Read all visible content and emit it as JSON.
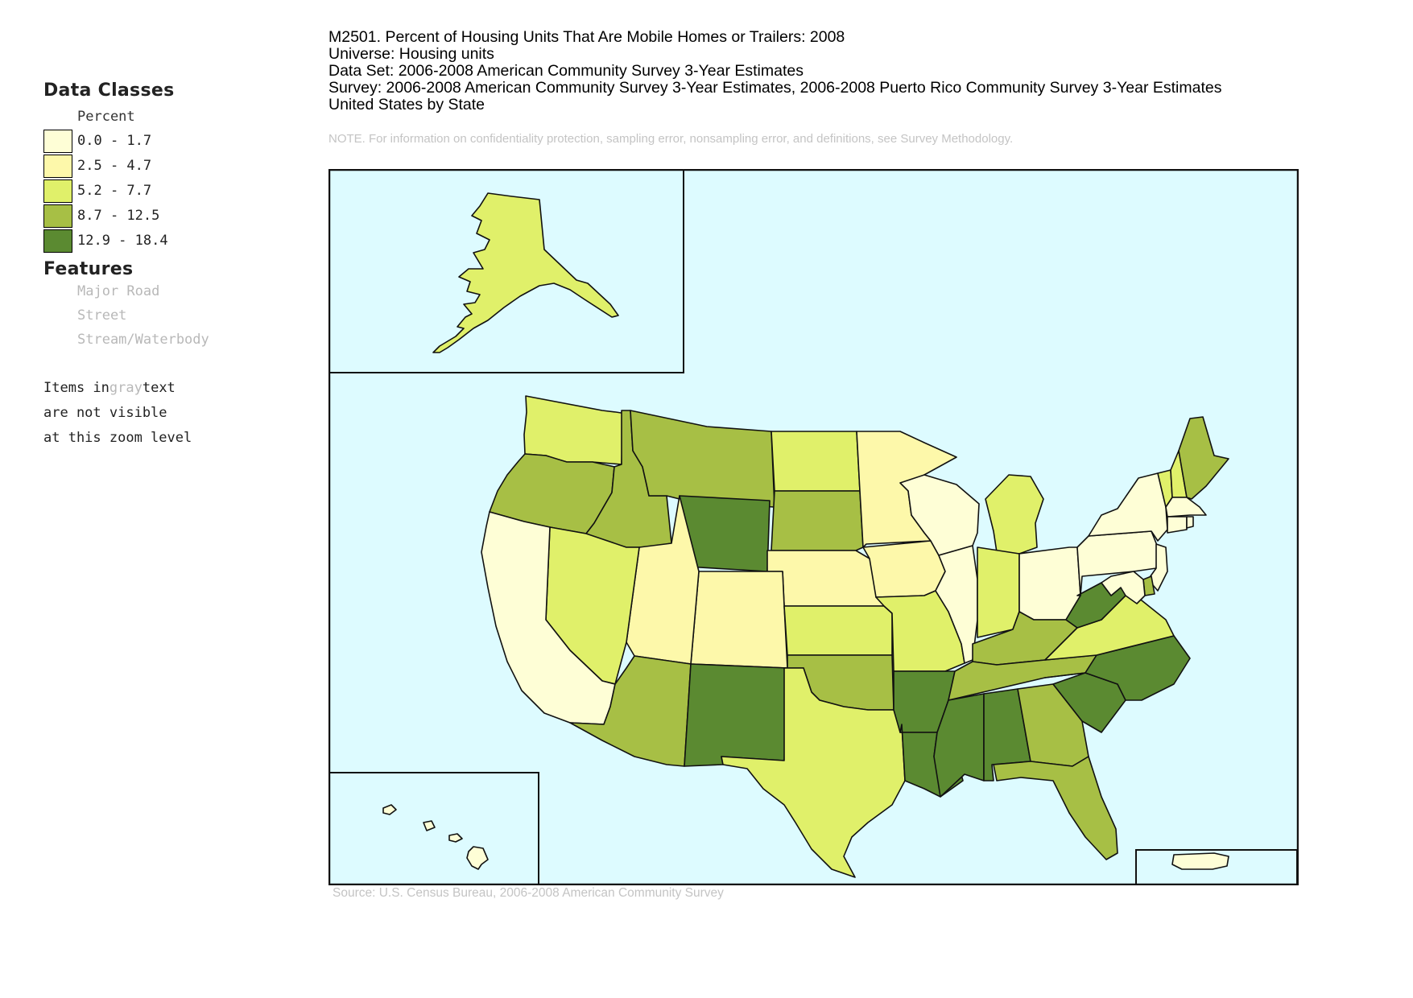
{
  "header": {
    "title": "M2501. Percent of Housing Units That Are Mobile Homes or Trailers: 2008",
    "universe": "Universe: Housing units",
    "dataset": "Data Set: 2006-2008 American Community Survey 3-Year Estimates",
    "survey": "Survey: 2006-2008 American Community Survey 3-Year Estimates, 2006-2008 Puerto Rico Community Survey 3-Year Estimates",
    "geography": "United States by State",
    "note": "NOTE. For information on confidentiality protection, sampling error, nonsampling error, and definitions, see Survey Methodology."
  },
  "legend": {
    "title": "Data Classes",
    "unit": "Percent",
    "classes": [
      {
        "range": "0.0 - 1.7",
        "color": "#fefed6"
      },
      {
        "range": "2.5 - 4.7",
        "color": "#fdf8aa"
      },
      {
        "range": "5.2 - 7.7",
        "color": "#e0f06a"
      },
      {
        "range": "8.7 - 12.5",
        "color": "#a7bf45"
      },
      {
        "range": "12.9 - 18.4",
        "color": "#5b8a31"
      }
    ],
    "features_title": "Features",
    "features": [
      "Major Road",
      "Street",
      "Stream/Waterbody"
    ],
    "note_part1": "Items in",
    "note_gray": "gray",
    "note_part2": "text",
    "note_line2": "are not visible",
    "note_line3": "at this zoom level"
  },
  "map": {
    "ocean_color": "#ddfbff",
    "states": {
      "WA": 2,
      "OR": 3,
      "CA": 0,
      "NV": 2,
      "ID": 3,
      "MT": 3,
      "WY": 4,
      "UT": 1,
      "CO": 1,
      "AZ": 3,
      "NM": 4,
      "ND": 2,
      "SD": 3,
      "NE": 1,
      "KS": 2,
      "OK": 3,
      "TX": 2,
      "MN": 1,
      "IA": 1,
      "MO": 2,
      "AR": 4,
      "LA": 4,
      "WI": 0,
      "IL": 0,
      "MI": 2,
      "IN": 2,
      "OH": 0,
      "KY": 3,
      "TN": 3,
      "MS": 4,
      "AL": 4,
      "GA": 3,
      "FL": 3,
      "SC": 4,
      "NC": 4,
      "VA": 2,
      "WV": 4,
      "PA": 0,
      "NY": 0,
      "VT": 2,
      "NH": 2,
      "ME": 3,
      "MA": 0,
      "CT": 0,
      "NJ": 0,
      "DE": 3,
      "MD": 0,
      "RI": 0,
      "AK": 2,
      "HI": 0,
      "PR": 0
    }
  },
  "source": "Source: U.S. Census Bureau, 2006-2008 American Community Survey"
}
